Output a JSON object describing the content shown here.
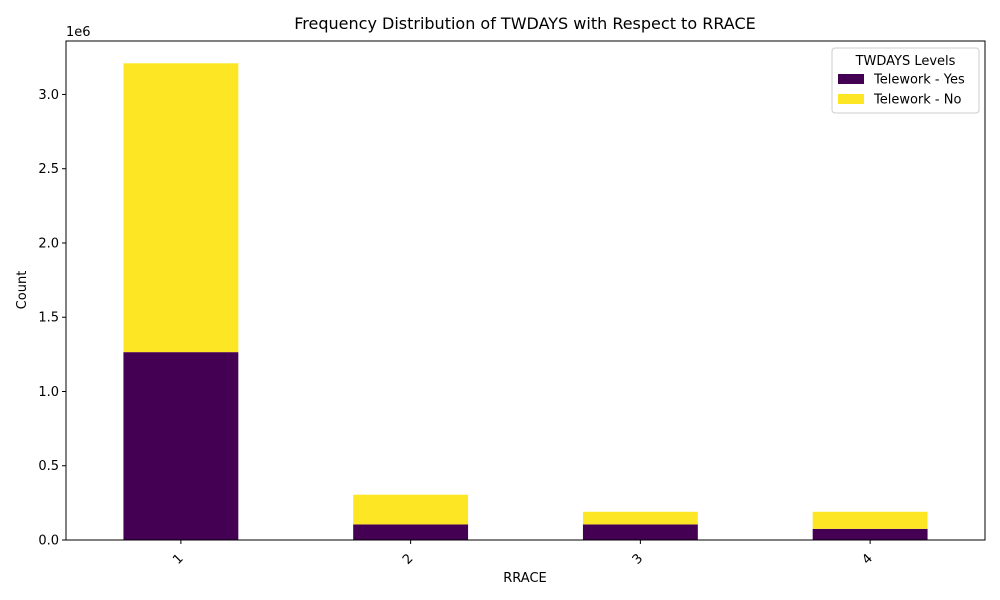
{
  "chart_data": {
    "type": "bar",
    "stacked": true,
    "title": "Frequency Distribution of TWDAYS with Respect to RRACE",
    "xlabel": "RRACE",
    "ylabel": "Count",
    "categories": [
      "1",
      "2",
      "3",
      "4"
    ],
    "series": [
      {
        "name": "Telework - Yes",
        "color": "#440154",
        "values": [
          1265000,
          105000,
          105000,
          75000
        ]
      },
      {
        "name": "Telework - No",
        "color": "#fde725",
        "values": [
          1945000,
          200000,
          85000,
          115000
        ]
      }
    ],
    "ylim": [
      0,
      3360000
    ],
    "yticks": [
      0,
      500000,
      1000000,
      1500000,
      2000000,
      2500000,
      3000000
    ],
    "ytick_labels": [
      "0.0",
      "0.5",
      "1.0",
      "1.5",
      "2.0",
      "2.5",
      "3.0"
    ],
    "y_offset_label": "1e6",
    "legend": {
      "title": "TWDAYS Levels",
      "position": "top-right"
    },
    "grid": false
  }
}
